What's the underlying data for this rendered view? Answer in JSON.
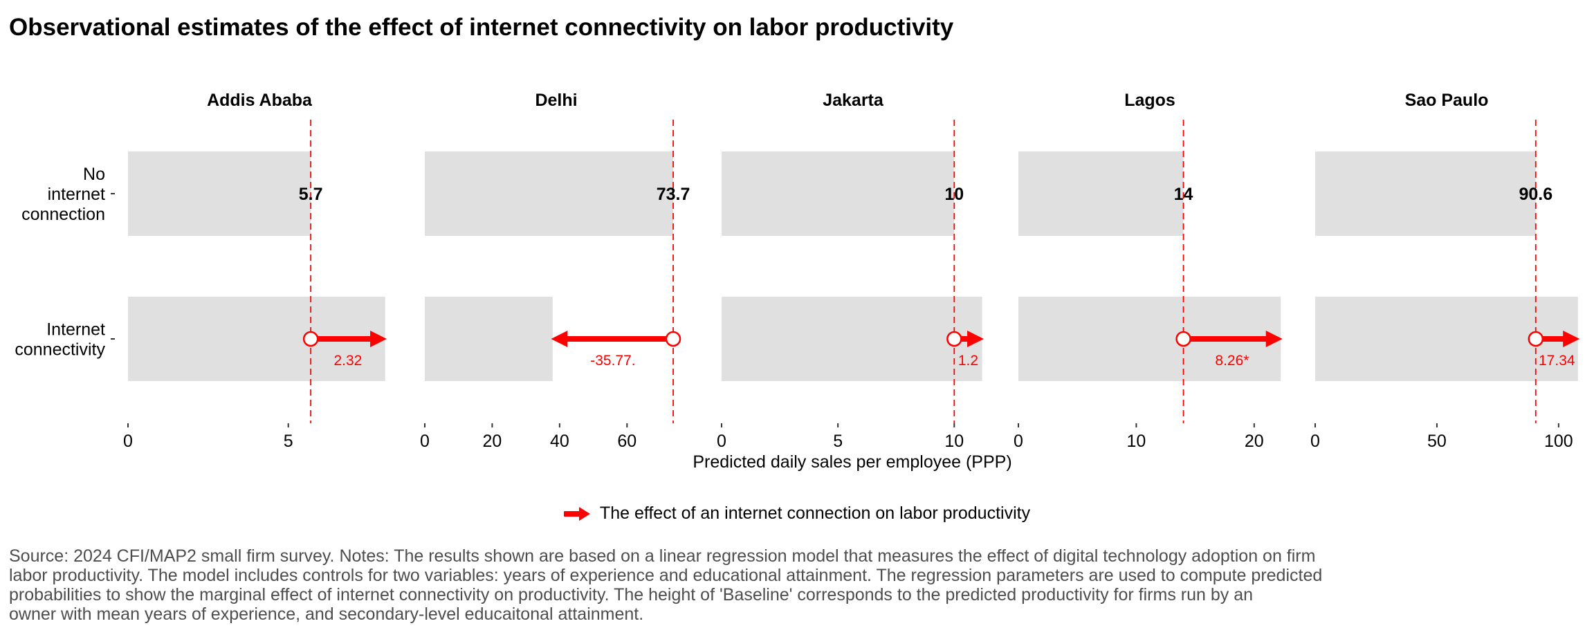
{
  "chart_data": {
    "type": "bar",
    "title": "Observational estimates of the effect of internet connectivity on labor productivity",
    "xlabel": "Predicted daily sales per employee (PPP)",
    "categories": [
      "No internet connection",
      "Internet connectivity"
    ],
    "category_lines": [
      [
        "No",
        "internet",
        "connection"
      ],
      [
        "Internet",
        "connectivity"
      ]
    ],
    "bar_color": "#e0e0e0",
    "accent_color": "#ff0000",
    "grid": false,
    "legend_position": "bottom",
    "legend_label": "The effect of an internet connection on labor productivity",
    "panels": [
      {
        "city": "Addis Ababa",
        "baseline": 5.7,
        "baseline_label": "5.7",
        "internet": 8.02,
        "effect_label": "2.32",
        "xlim": [
          0,
          8.2
        ],
        "ticks": [
          0,
          5
        ],
        "tick_labels": [
          "0",
          "5"
        ]
      },
      {
        "city": "Delhi",
        "baseline": 73.7,
        "baseline_label": "73.7",
        "internet": 37.93,
        "effect_label": "-35.77.",
        "xlim": [
          0,
          78
        ],
        "ticks": [
          0,
          20,
          40,
          60
        ],
        "tick_labels": [
          "0",
          "20",
          "40",
          "60"
        ]
      },
      {
        "city": "Jakarta",
        "baseline": 10,
        "baseline_label": "10",
        "internet": 11.2,
        "effect_label": "1.2",
        "xlim": [
          0,
          11.3
        ],
        "ticks": [
          0,
          5,
          10
        ],
        "tick_labels": [
          "0",
          "5",
          "10"
        ]
      },
      {
        "city": "Lagos",
        "baseline": 14,
        "baseline_label": "14",
        "internet": 22.26,
        "effect_label": "8.26*",
        "xlim": [
          0,
          22.3
        ],
        "ticks": [
          0,
          10,
          20
        ],
        "tick_labels": [
          "0",
          "10",
          "20"
        ]
      },
      {
        "city": "Sao Paulo",
        "baseline": 90.6,
        "baseline_label": "90.6",
        "internet": 107.94,
        "effect_label": "17.34",
        "xlim": [
          0,
          108
        ],
        "ticks": [
          0,
          50,
          100
        ],
        "tick_labels": [
          "0",
          "50",
          "100"
        ]
      }
    ]
  },
  "source_note": [
    "Source: 2024 CFI/MAP2 small firm survey. Notes: The results shown are based on a linear regression model that measures the effect of digital technology adoption on firm",
    "labor productivity. The model includes controls for two variables: years of experience and educational attainment. The regression parameters are used to compute predicted",
    "probabilities to show the marginal effect of internet connectivity on productivity. The height of 'Baseline' corresponds to the predicted productivity for firms run by an",
    "owner with mean years of experience, and secondary-level educaitonal attainment."
  ]
}
